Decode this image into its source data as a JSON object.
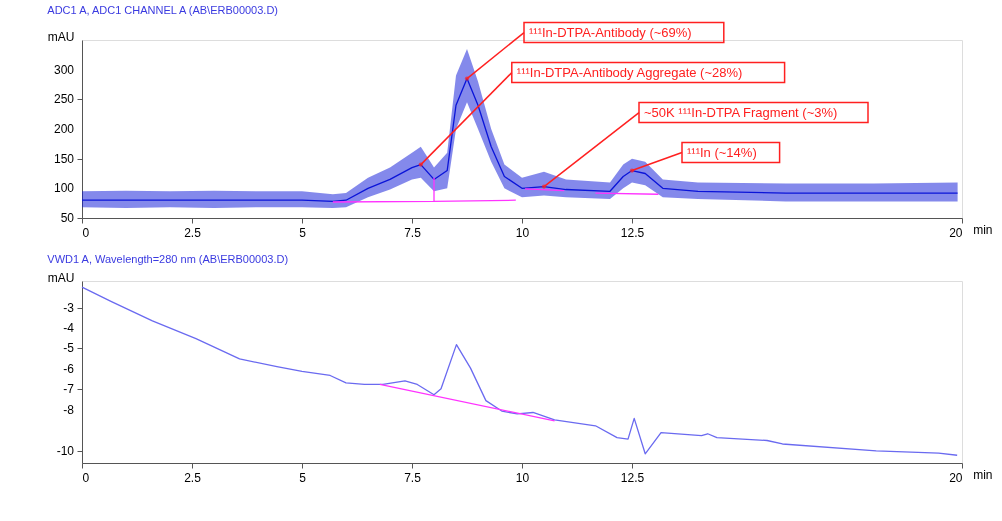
{
  "chart_data": [
    {
      "type": "line",
      "title": "ADC1 A, ADC1 CHANNEL A (AB\\ERB00003.D)",
      "xlabel": "min",
      "ylabel": "mAU",
      "xlim": [
        0,
        20
      ],
      "xticks": [
        0,
        2.5,
        5,
        7.5,
        10,
        12.5,
        20
      ],
      "ylim": [
        50,
        350
      ],
      "yticks": [
        50,
        100,
        150,
        200,
        250,
        300
      ],
      "grid": false,
      "series": [
        {
          "color": "#0a14d8",
          "x": [
            0,
            1,
            2,
            3,
            4,
            5,
            5.7,
            6.0,
            6.5,
            7.0,
            7.5,
            7.7,
            8.0,
            8.3,
            8.5,
            8.75,
            9.0,
            9.3,
            9.6,
            10.0,
            10.5,
            11.0,
            12.0,
            12.3,
            12.5,
            12.8,
            13.2,
            14,
            16,
            18,
            19.9
          ],
          "values": [
            80,
            80,
            80,
            80,
            80,
            80,
            78,
            80,
            100,
            115,
            135,
            140,
            115,
            130,
            240,
            285,
            240,
            170,
            120,
            100,
            103,
            98,
            95,
            120,
            130,
            125,
            100,
            95,
            92,
            92,
            92
          ],
          "lower": [
            68,
            67,
            68,
            67,
            68,
            68,
            67,
            68,
            85,
            98,
            115,
            118,
            95,
            100,
            200,
            245,
            200,
            145,
            100,
            85,
            88,
            85,
            82,
            100,
            110,
            105,
            85,
            82,
            78,
            78,
            78
          ],
          "upper": [
            95,
            96,
            95,
            96,
            95,
            95,
            90,
            92,
            118,
            135,
            160,
            170,
            135,
            160,
            290,
            335,
            280,
            200,
            140,
            118,
            128,
            115,
            110,
            140,
            150,
            145,
            115,
            110,
            108,
            108,
            110
          ]
        },
        {
          "color": "#ff33ff",
          "x": [
            5.7,
            8.0,
            8.0
          ],
          "values": [
            77,
            78,
            118
          ]
        },
        {
          "color": "#ff33ff",
          "x": [
            8.0,
            9.86
          ],
          "values": [
            78,
            80
          ]
        },
        {
          "color": "#ff33ff",
          "x": [
            10.07,
            10.96
          ],
          "values": [
            99,
            96
          ]
        },
        {
          "color": "#ff33ff",
          "x": [
            11.67,
            13.1
          ],
          "values": [
            92,
            90
          ]
        }
      ],
      "annotations": [
        {
          "text": "¹¹¹In-DTPA-Antibody (~69%)",
          "x": 8.75,
          "y": 285
        },
        {
          "text": "¹¹¹In-DTPA-Antibody Aggregate (~28%)",
          "x": 7.7,
          "y": 140
        },
        {
          "text": "~50K ¹¹¹In-DTPA Fragment (~3%)",
          "x": 10.5,
          "y": 103
        },
        {
          "text": "¹¹¹In (~14%)",
          "x": 12.5,
          "y": 130
        }
      ]
    },
    {
      "type": "line",
      "title": "VWD1 A, Wavelength=280 nm (AB\\ERB00003.D)",
      "xlabel": "min",
      "ylabel": "mAU",
      "xlim": [
        0,
        20
      ],
      "xticks": [
        0,
        2.5,
        5,
        7.5,
        10,
        12.5,
        20
      ],
      "ylim": [
        -10.6,
        -1.7
      ],
      "yticks": [
        -3,
        -4,
        -5,
        -6,
        -7,
        -8,
        -10
      ],
      "grid": false,
      "series": [
        {
          "color": "#6a6af0",
          "x": [
            0,
            0.67,
            1.6,
            2.59,
            3.58,
            4.43,
            5.0,
            5.64,
            6.0,
            6.42,
            6.84,
            7.34,
            7.62,
            8.0,
            8.16,
            8.51,
            8.83,
            9.18,
            9.54,
            9.89,
            10.25,
            10.74,
            11.67,
            12.16,
            12.41,
            12.55,
            12.8,
            13.16,
            14.08,
            14.22,
            14.43,
            15.57,
            15.92,
            18.05,
            19.47,
            19.89
          ],
          "values": [
            -2.0,
            -2.71,
            -3.65,
            -4.52,
            -5.51,
            -5.89,
            -6.12,
            -6.32,
            -6.68,
            -6.76,
            -6.76,
            -6.58,
            -6.76,
            -7.26,
            -6.97,
            -4.81,
            -5.96,
            -7.55,
            -8.06,
            -8.2,
            -8.13,
            -8.49,
            -8.78,
            -9.36,
            -9.43,
            -8.42,
            -10.15,
            -9.11,
            -9.26,
            -9.17,
            -9.36,
            -9.5,
            -9.67,
            -10.01,
            -10.12,
            -10.22
          ]
        },
        {
          "color": "#ff33ff",
          "x": [
            6.77,
            10.74
          ],
          "values": [
            -6.76,
            -8.54
          ]
        }
      ]
    }
  ]
}
